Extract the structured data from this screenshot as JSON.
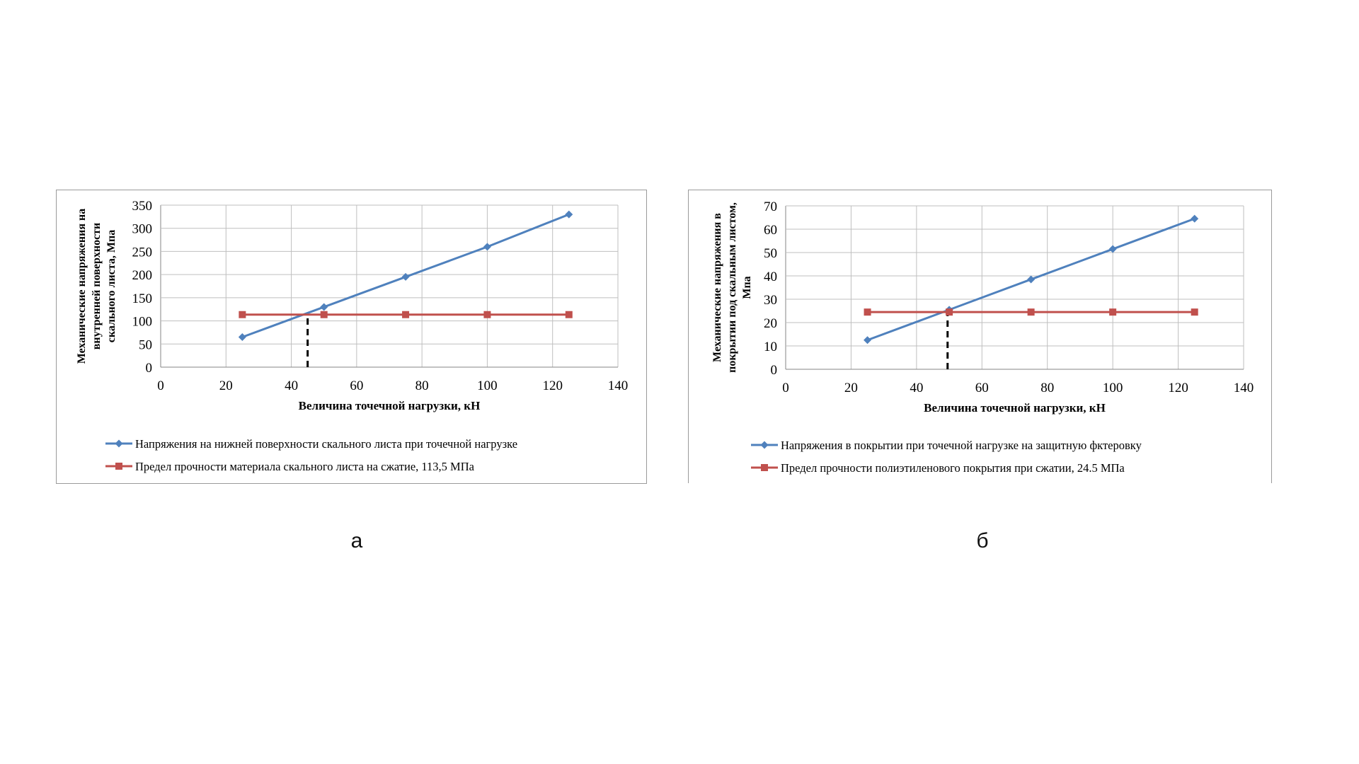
{
  "chart_data": [
    {
      "type": "line",
      "xlabel": "Величина точечной нагрузки, кН",
      "ylabel": [
        "Механические напряжения на",
        "внутренней поверхности",
        "скального листа, Мпа"
      ],
      "xlim": [
        0,
        140
      ],
      "ylim": [
        0,
        350
      ],
      "xticks": [
        "0",
        "20",
        "40",
        "60",
        "80",
        "100",
        "120",
        "140"
      ],
      "yticks": [
        "0",
        "50",
        "100",
        "150",
        "200",
        "250",
        "300",
        "350"
      ],
      "x_tick_values": [
        0,
        20,
        40,
        60,
        80,
        100,
        120,
        140
      ],
      "y_tick_values": [
        0,
        50,
        100,
        150,
        200,
        250,
        300,
        350
      ],
      "grid": true,
      "legend_position": "bottom",
      "series": [
        {
          "name": "Напряжения на нижней поверхности скального листа при точечной нагрузке",
          "x": [
            25,
            50,
            75,
            100,
            125
          ],
          "y": [
            65,
            130,
            195,
            260,
            330
          ],
          "color": "#4F81BD",
          "marker": "diamond"
        },
        {
          "name": "Предел прочности материала скального листа на сжатие, 113,5 МПа",
          "x": [
            25,
            50,
            75,
            100,
            125
          ],
          "y": [
            113.5,
            113.5,
            113.5,
            113.5,
            113.5
          ],
          "color": "#C0504D",
          "marker": "square"
        }
      ],
      "annotation": {
        "type": "dashed-vertical",
        "x": 45,
        "y_from": 0,
        "y_to": 113.5,
        "color": "#000000"
      }
    },
    {
      "type": "line",
      "xlabel": "Величина точечной нагрузки, кН",
      "ylabel": [
        "Механические напряжения в",
        "покрытии под скальным листом,",
        "Мпа"
      ],
      "xlim": [
        0,
        140
      ],
      "ylim": [
        0,
        70
      ],
      "xticks": [
        "0",
        "20",
        "40",
        "60",
        "80",
        "100",
        "120",
        "140"
      ],
      "yticks": [
        "0",
        "10",
        "20",
        "30",
        "40",
        "50",
        "60",
        "70"
      ],
      "x_tick_values": [
        0,
        20,
        40,
        60,
        80,
        100,
        120,
        140
      ],
      "y_tick_values": [
        0,
        10,
        20,
        30,
        40,
        50,
        60,
        70
      ],
      "grid": true,
      "legend_position": "bottom",
      "series": [
        {
          "name": "Напряжения в покрытии при точечной нагрузке на защитную фктеровку",
          "x": [
            25,
            50,
            75,
            100,
            125
          ],
          "y": [
            12.5,
            25.5,
            38.5,
            51.5,
            64.5
          ],
          "color": "#4F81BD",
          "marker": "diamond"
        },
        {
          "name": "Предел прочности полиэтиленового покрытия при сжатии, 24.5 МПа",
          "x": [
            25,
            50,
            75,
            100,
            125
          ],
          "y": [
            24.5,
            24.5,
            24.5,
            24.5,
            24.5
          ],
          "color": "#C0504D",
          "marker": "square"
        }
      ],
      "annotation": {
        "type": "dashed-vertical",
        "x": 49.5,
        "y_from": 0,
        "y_to": 25,
        "color": "#000000"
      }
    }
  ],
  "captions": {
    "a": "а",
    "b": "б"
  }
}
